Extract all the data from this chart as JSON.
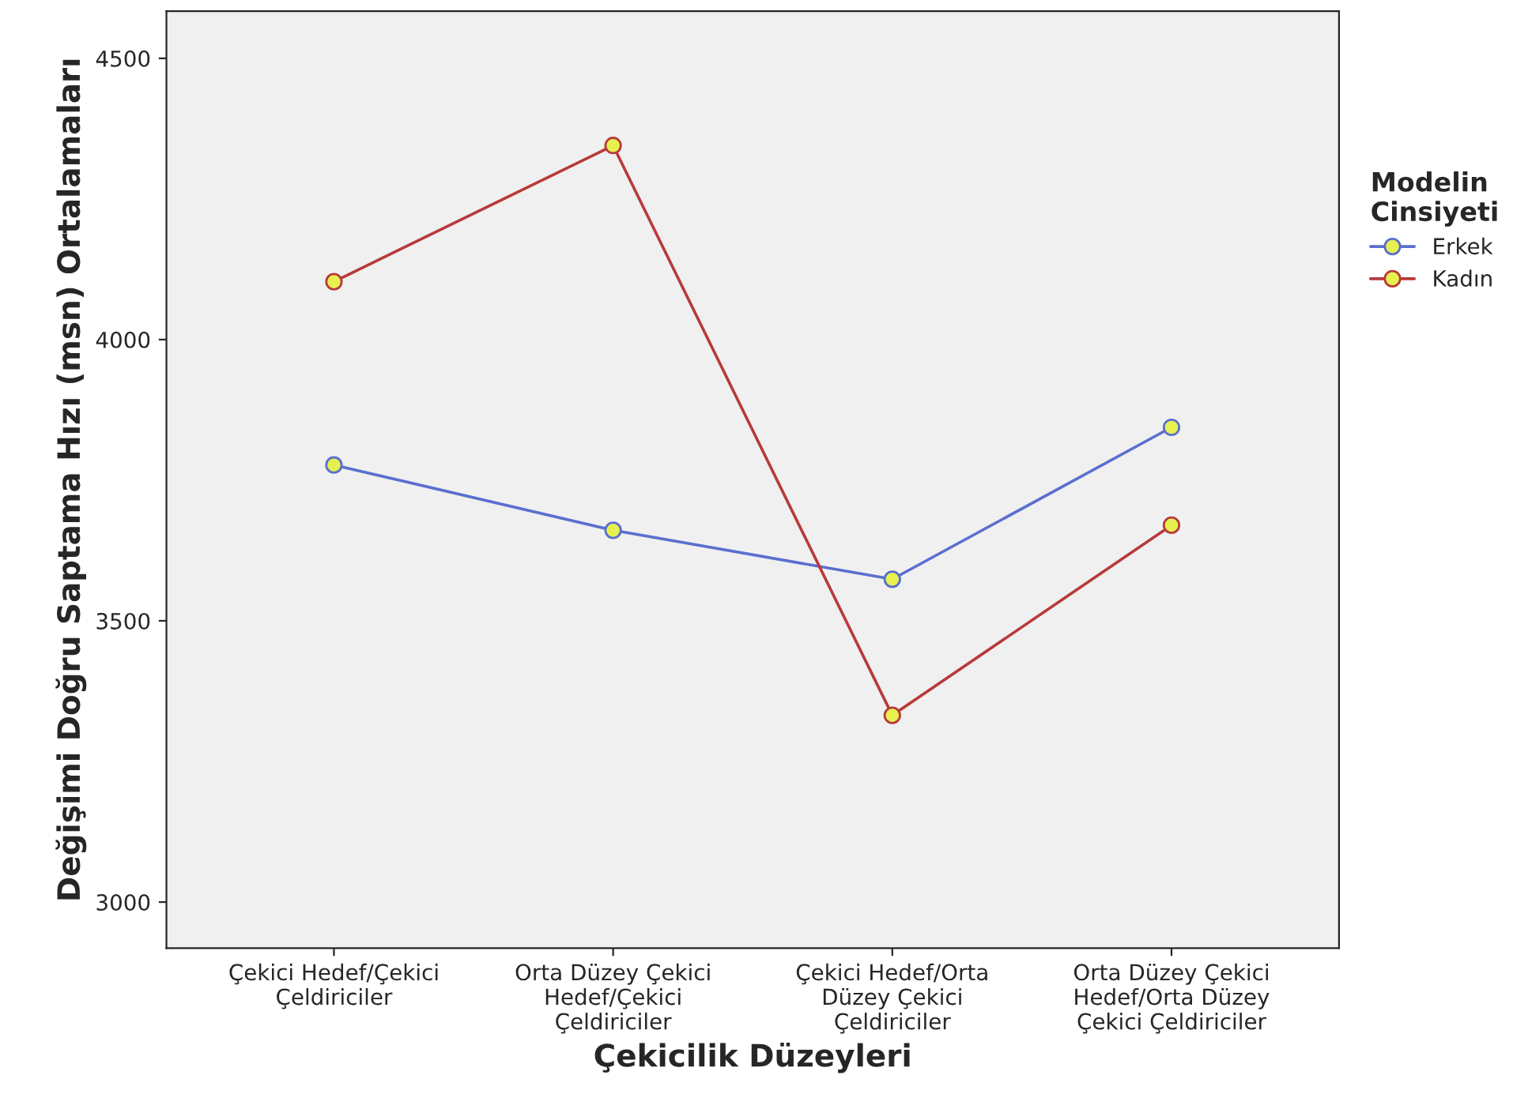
{
  "chart_data": {
    "type": "line",
    "xlabel": "Çekicilik Düzeyleri",
    "ylabel": "Değişimi Doğru Saptama Hızı (msn) Ortalamaları",
    "legend_title": "Modelin\nCinsiyeti",
    "categories": [
      "Çekici Hedef/Çekici\nÇeldiriciler",
      "Orta Düzey Çekici\nHedef/Çekici\nÇeldiriciler",
      "Çekici Hedef/Orta\nDüzey Çekici\nÇeldiriciler",
      "Orta Düzey Çekici\nHedef/Orta Düzey\nÇekici Çeldiriciler"
    ],
    "series": [
      {
        "name": "Erkek",
        "color": "#5a6fcf",
        "values": [
          3777,
          3661,
          3574,
          3844
        ]
      },
      {
        "name": "Kadın",
        "color": "#b83a3a",
        "values": [
          4103,
          4345,
          3332,
          3670
        ]
      }
    ],
    "ylim": [
      2918,
      4584
    ],
    "yticks": [
      3000,
      3500,
      4000,
      4500
    ],
    "grid": false,
    "legend": "right",
    "marker": "circle",
    "line_style": "solid"
  }
}
